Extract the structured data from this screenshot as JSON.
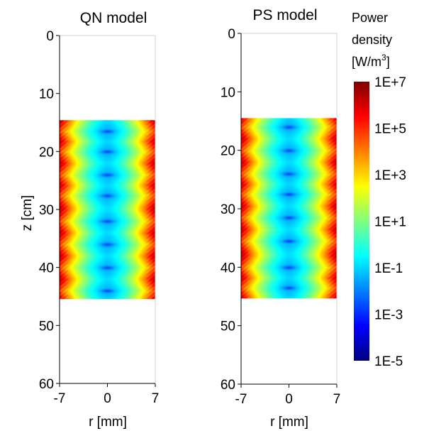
{
  "chart_data": [
    {
      "type": "heatmap",
      "title": "QN model",
      "xlabel": "r [mm]",
      "ylabel": "z [cm]",
      "xlim": [
        -7,
        7
      ],
      "ylim": [
        60,
        0
      ],
      "x_ticks": [
        "-7",
        "0",
        "7"
      ],
      "y_ticks": [
        "0",
        "10",
        "20",
        "30",
        "40",
        "50",
        "60"
      ],
      "y_tick_values": [
        0,
        10,
        20,
        30,
        40,
        50,
        60
      ],
      "field_region": {
        "z_start": 14.6,
        "z_end": 45.4
      },
      "radial_minima_z": [
        16.5,
        20,
        24,
        27.6,
        32,
        36,
        40,
        44
      ],
      "field_log_range": [
        -1.5,
        6.5
      ]
    },
    {
      "type": "heatmap",
      "title": "PS model",
      "xlabel": "r [mm]",
      "ylabel": "",
      "xlim": [
        -7,
        7
      ],
      "ylim": [
        60,
        0
      ],
      "x_ticks": [
        "-7",
        "0",
        "7"
      ],
      "y_ticks": [
        "0",
        "10",
        "20",
        "30",
        "40",
        "50",
        "60"
      ],
      "y_tick_values": [
        0,
        10,
        20,
        30,
        40,
        50,
        60
      ],
      "field_region": {
        "z_start": 14.5,
        "z_end": 45.4
      },
      "radial_minima_z": [
        16,
        20,
        24,
        27.5,
        31.5,
        35.5,
        40,
        43.5
      ],
      "field_log_range": [
        -1.5,
        6.5
      ]
    }
  ],
  "colorbar": {
    "title_lines": [
      "Power",
      "density"
    ],
    "unit_base": "[W/m",
    "unit_sup": "3",
    "unit_close": "]",
    "ticks": [
      "1E+7",
      "1E+5",
      "1E+3",
      "1E+1",
      "1E-1",
      "1E-3",
      "1E-5"
    ],
    "tick_values": [
      7,
      5,
      3,
      1,
      -1,
      -3,
      -5
    ],
    "range": [
      -5,
      7
    ],
    "scale": "log",
    "colormap": "jet"
  }
}
